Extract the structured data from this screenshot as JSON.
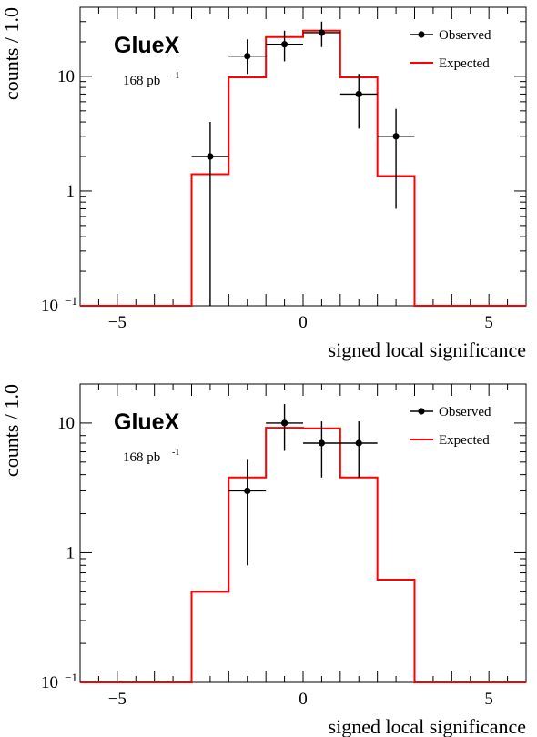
{
  "chart_data": [
    {
      "type": "histogram",
      "xlabel": "signed local significance",
      "ylabel": "counts / 1.0",
      "xlim": [
        -6,
        6
      ],
      "ylim": [
        0.1,
        40
      ],
      "yscale": "log",
      "x_ticks": [
        -5,
        0,
        5
      ],
      "x_tick_labels": [
        "−5",
        "0",
        "5"
      ],
      "y_tick_labels": [
        {
          "v": 0.1,
          "base": "10",
          "exp": "−1"
        },
        {
          "v": 1,
          "base": "1",
          "exp": ""
        },
        {
          "v": 10,
          "base": "10",
          "exp": ""
        }
      ],
      "experiment_label": "GlueX",
      "luminosity": {
        "base": "168 pb",
        "exp": "-1"
      },
      "legend": [
        {
          "label": "Observed",
          "style": "marker"
        },
        {
          "label": "Expected",
          "style": "line"
        }
      ],
      "legend_position": "top-right",
      "expected": [
        {
          "x_low": -6,
          "x_high": -3,
          "value": 0.1
        },
        {
          "x_low": -3,
          "x_high": -2,
          "value": 1.4
        },
        {
          "x_low": -2,
          "x_high": -1,
          "value": 9.8
        },
        {
          "x_low": -1,
          "x_high": 0,
          "value": 22
        },
        {
          "x_low": 0,
          "x_high": 1,
          "value": 25
        },
        {
          "x_low": 1,
          "x_high": 2,
          "value": 9.8
        },
        {
          "x_low": 2,
          "x_high": 3,
          "value": 1.35
        },
        {
          "x_low": 3,
          "x_high": 6,
          "value": 0.1
        }
      ],
      "observed": [
        {
          "x": -2.5,
          "y": 2,
          "y_low": 0.1,
          "y_high": 4.0
        },
        {
          "x": -1.5,
          "y": 15,
          "y_low": 10.5,
          "y_high": 21
        },
        {
          "x": -0.5,
          "y": 19,
          "y_low": 13.5,
          "y_high": 25
        },
        {
          "x": 0.5,
          "y": 24,
          "y_low": 18,
          "y_high": 30
        },
        {
          "x": 1.5,
          "y": 7,
          "y_low": 3.5,
          "y_high": 10.5
        },
        {
          "x": 2.5,
          "y": 3,
          "y_low": 0.7,
          "y_high": 5.2
        }
      ],
      "colors": {
        "expected": "#ff0000",
        "observed": "#000000"
      }
    },
    {
      "type": "histogram",
      "xlabel": "signed local significance",
      "ylabel": "counts / 1.0",
      "xlim": [
        -6,
        6
      ],
      "ylim": [
        0.1,
        20
      ],
      "yscale": "log",
      "x_ticks": [
        -5,
        0,
        5
      ],
      "x_tick_labels": [
        "−5",
        "0",
        "5"
      ],
      "y_tick_labels": [
        {
          "v": 0.1,
          "base": "10",
          "exp": "−1"
        },
        {
          "v": 1,
          "base": "1",
          "exp": ""
        },
        {
          "v": 10,
          "base": "10",
          "exp": ""
        }
      ],
      "experiment_label": "GlueX",
      "luminosity": {
        "base": "168 pb",
        "exp": "-1"
      },
      "legend": [
        {
          "label": "Observed",
          "style": "marker"
        },
        {
          "label": "Expected",
          "style": "line"
        }
      ],
      "legend_position": "top-right",
      "expected": [
        {
          "x_low": -6,
          "x_high": -3,
          "value": 0.1
        },
        {
          "x_low": -3,
          "x_high": -2,
          "value": 0.5
        },
        {
          "x_low": -2,
          "x_high": -1,
          "value": 3.8
        },
        {
          "x_low": -1,
          "x_high": 0,
          "value": 9.2
        },
        {
          "x_low": 0,
          "x_high": 1,
          "value": 9.1
        },
        {
          "x_low": 1,
          "x_high": 2,
          "value": 3.8
        },
        {
          "x_low": 2,
          "x_high": 3,
          "value": 0.62
        },
        {
          "x_low": 3,
          "x_high": 6,
          "value": 0.1
        }
      ],
      "observed": [
        {
          "x": -1.5,
          "y": 3,
          "y_low": 0.8,
          "y_high": 5.2
        },
        {
          "x": -0.5,
          "y": 10,
          "y_low": 6.1,
          "y_high": 14
        },
        {
          "x": 0.5,
          "y": 7,
          "y_low": 3.8,
          "y_high": 10.3
        },
        {
          "x": 1.5,
          "y": 7,
          "y_low": 3.8,
          "y_high": 10.3
        }
      ],
      "colors": {
        "expected": "#ff0000",
        "observed": "#000000"
      }
    }
  ]
}
